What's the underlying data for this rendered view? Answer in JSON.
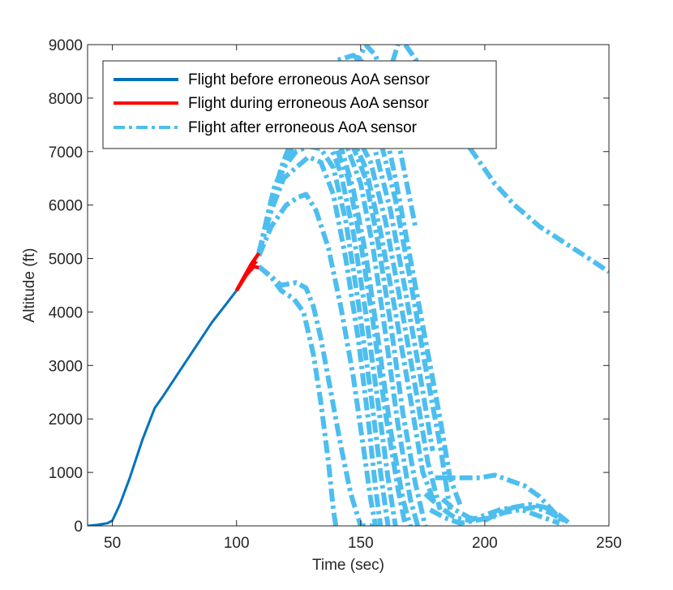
{
  "chart_data": {
    "type": "line",
    "title": "",
    "xlabel": "Time (sec)",
    "ylabel": "Altitude (ft)",
    "xlim": [
      40,
      250
    ],
    "ylim": [
      0,
      9000
    ],
    "xticks": [
      50,
      100,
      150,
      200,
      250
    ],
    "yticks": [
      0,
      1000,
      2000,
      3000,
      4000,
      5000,
      6000,
      7000,
      8000,
      9000
    ],
    "grid": false,
    "legend_position": "top-left",
    "colors": {
      "before": "#0072BD",
      "during": "#FF0000",
      "after": "#4DBEEE"
    },
    "legend": [
      {
        "label": "Flight before erroneous AoA sensor",
        "style": "solid",
        "color": "#0072BD"
      },
      {
        "label": "Flight during erroneous AoA sensor",
        "style": "solid",
        "color": "#FF0000"
      },
      {
        "label": "Flight after erroneous AoA sensor",
        "style": "dashdot",
        "color": "#4DBEEE"
      }
    ],
    "series_before": {
      "x": [
        40,
        44,
        48,
        50,
        53,
        57,
        62,
        67,
        70,
        75,
        80,
        85,
        90,
        95,
        100
      ],
      "y": [
        0,
        20,
        50,
        100,
        400,
        900,
        1600,
        2200,
        2400,
        2750,
        3100,
        3450,
        3800,
        4100,
        4400
      ]
    },
    "series_during": [
      {
        "x": [
          100,
          103,
          106,
          109
        ],
        "y": [
          4400,
          4650,
          4900,
          5100
        ]
      },
      {
        "x": [
          100,
          104,
          107,
          109
        ],
        "y": [
          4400,
          4700,
          4850,
          4830
        ]
      },
      {
        "x": [
          102,
          105,
          108
        ],
        "y": [
          4550,
          4800,
          4950
        ]
      }
    ],
    "series_after": [
      {
        "x": [
          109,
          113,
          118,
          124,
          128,
          131,
          134,
          138,
          142,
          146,
          150,
          153,
          156
        ],
        "y": [
          4850,
          4700,
          4500,
          4550,
          4450,
          4100,
          3500,
          2500,
          1500,
          600,
          0,
          0,
          0
        ]
      },
      {
        "x": [
          109,
          114,
          118,
          123,
          127,
          131,
          134,
          137,
          139,
          140
        ],
        "y": [
          4850,
          4650,
          4400,
          4250,
          4000,
          3200,
          2300,
          1200,
          300,
          0
        ]
      },
      {
        "x": [
          109,
          114,
          120,
          125,
          128,
          132,
          137,
          142,
          147,
          151,
          154,
          156
        ],
        "y": [
          5050,
          5600,
          6000,
          6150,
          6200,
          5900,
          5200,
          4100,
          2800,
          1500,
          500,
          0
        ]
      },
      {
        "x": [
          109,
          114,
          119,
          124,
          129,
          134,
          139,
          144,
          149,
          153,
          156,
          158
        ],
        "y": [
          5100,
          5900,
          6500,
          6700,
          6900,
          6800,
          6200,
          5000,
          3500,
          2000,
          700,
          0
        ]
      },
      {
        "x": [
          109,
          114,
          119,
          124,
          129,
          134,
          139,
          144,
          149,
          154,
          158,
          161
        ],
        "y": [
          5100,
          6000,
          6700,
          7000,
          7100,
          7050,
          6700,
          5700,
          4200,
          2500,
          1000,
          0
        ]
      },
      {
        "x": [
          109,
          114,
          120,
          126,
          132,
          137,
          142,
          147,
          152,
          157,
          161,
          164
        ],
        "y": [
          5100,
          6100,
          6900,
          7200,
          7300,
          7200,
          6600,
          5500,
          4000,
          2300,
          900,
          0
        ]
      },
      {
        "x": [
          109,
          115,
          121,
          127,
          133,
          139,
          145,
          150,
          155,
          160,
          165,
          168
        ],
        "y": [
          5100,
          6200,
          7000,
          7300,
          7350,
          7200,
          6500,
          5300,
          3800,
          2100,
          700,
          0
        ]
      },
      {
        "x": [
          109,
          115,
          122,
          129,
          136,
          142,
          147,
          152,
          157,
          162,
          167,
          170
        ],
        "y": [
          5100,
          6300,
          7100,
          7400,
          7400,
          7100,
          6300,
          5100,
          3500,
          1800,
          500,
          0
        ]
      },
      {
        "x": [
          109,
          116,
          123,
          131,
          138,
          144,
          150,
          155,
          160,
          165,
          170,
          173
        ],
        "y": [
          5100,
          6400,
          7200,
          7500,
          7450,
          7150,
          6400,
          5200,
          3600,
          1900,
          500,
          0
        ]
      },
      {
        "x": [
          109,
          117,
          125,
          133,
          140,
          146,
          152,
          157,
          162,
          167,
          172,
          176
        ],
        "y": [
          5100,
          6500,
          7400,
          7600,
          7500,
          7200,
          6500,
          5300,
          3800,
          2100,
          800,
          0
        ]
      },
      {
        "x": [
          109,
          117,
          125,
          133,
          140,
          146,
          152,
          158,
          164,
          170,
          175,
          180
        ],
        "y": [
          5100,
          6500,
          7500,
          7700,
          7600,
          7300,
          6700,
          5500,
          4000,
          2400,
          1000,
          400
        ]
      },
      {
        "x": [
          109,
          118,
          127,
          135,
          142,
          148,
          154,
          160,
          166,
          172,
          177,
          182
        ],
        "y": [
          5100,
          6600,
          7600,
          7800,
          7650,
          7350,
          6800,
          5700,
          4200,
          2600,
          1200,
          300
        ]
      },
      {
        "x": [
          109,
          118,
          127,
          136,
          143,
          150,
          156,
          162,
          168,
          174,
          179
        ],
        "y": [
          5100,
          6700,
          7800,
          8100,
          8000,
          7600,
          7000,
          5900,
          4400,
          2800,
          1400
        ]
      },
      {
        "x": [
          109,
          119,
          129,
          139,
          146,
          152,
          158,
          164,
          170,
          176,
          182,
          186
        ],
        "y": [
          5100,
          6800,
          8000,
          8500,
          8400,
          7900,
          7200,
          6100,
          4600,
          3000,
          1500,
          300
        ]
      },
      {
        "x": [
          109,
          120,
          131,
          140,
          147,
          153,
          158,
          164,
          170,
          176,
          182,
          186,
          190
        ],
        "y": [
          5100,
          6900,
          8200,
          8700,
          8800,
          8600,
          7800,
          6500,
          5000,
          3500,
          2000,
          900,
          400
        ]
      },
      {
        "x": [
          137,
          143,
          147,
          150,
          152,
          156,
          160,
          166,
          172
        ],
        "y": [
          7800,
          8300,
          8600,
          8800,
          9000,
          8800,
          8200,
          7000,
          5600
        ]
      },
      {
        "x": [
          157,
          161,
          165
        ],
        "y": [
          7800,
          8400,
          9000
        ]
      },
      {
        "x": [
          168,
          174,
          180,
          186,
          192,
          198,
          204,
          212,
          222,
          232,
          242,
          250
        ],
        "y": [
          9000,
          8600,
          8100,
          7600,
          7200,
          6800,
          6400,
          6000,
          5600,
          5300,
          5000,
          4750
        ]
      },
      {
        "x": [
          180,
          186,
          192,
          198,
          204,
          210,
          216,
          222,
          228,
          232
        ],
        "y": [
          900,
          900,
          900,
          900,
          950,
          850,
          750,
          550,
          250,
          50
        ]
      },
      {
        "x": [
          176,
          182,
          188,
          194,
          200,
          206,
          212,
          218,
          224,
          230,
          234
        ],
        "y": [
          600,
          350,
          150,
          100,
          200,
          300,
          350,
          400,
          350,
          200,
          50
        ]
      },
      {
        "x": [
          178,
          184,
          190,
          196,
          202,
          208,
          214,
          220,
          226,
          232
        ],
        "y": [
          300,
          150,
          50,
          100,
          150,
          250,
          300,
          350,
          250,
          100
        ]
      },
      {
        "x": [
          183,
          188,
          194,
          200,
          206,
          212,
          218,
          224,
          230
        ],
        "y": [
          500,
          300,
          150,
          100,
          250,
          350,
          250,
          150,
          50
        ]
      }
    ]
  }
}
